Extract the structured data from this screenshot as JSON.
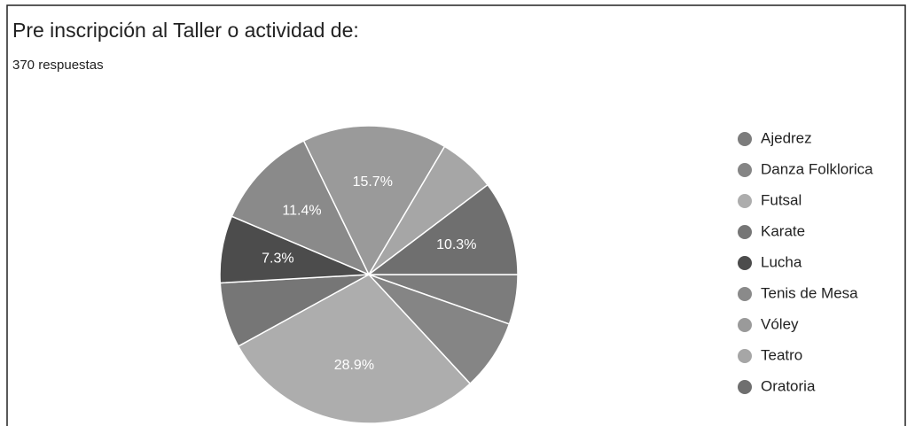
{
  "chart_data": {
    "type": "pie",
    "title": "Pre inscripción al Taller o actividad de:",
    "subtitle": "370 respuestas",
    "categories": [
      "Ajedrez",
      "Danza Folklorica",
      "Futsal",
      "Karate",
      "Lucha",
      "Tenis de Mesa",
      "Vóley",
      "Teatro",
      "Oratoria"
    ],
    "values": [
      5.4,
      7.7,
      28.9,
      7.1,
      7.3,
      11.4,
      15.7,
      6.2,
      10.3
    ],
    "value_labels": [
      null,
      null,
      "28.9%",
      null,
      "7.3%",
      "11.4%",
      "15.7%",
      null,
      "10.3%"
    ],
    "colors": [
      "#7c7c7c",
      "#858585",
      "#adadad",
      "#767676",
      "#4c4c4c",
      "#8a8a8a",
      "#9a9a9a",
      "#a6a6a6",
      "#6f6f6f"
    ]
  }
}
